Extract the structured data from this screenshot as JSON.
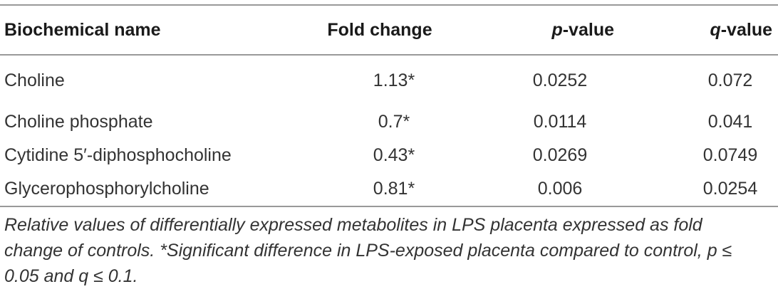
{
  "table": {
    "headers": {
      "name": "Biochemical name",
      "fold": "Fold change",
      "p_letter": "p",
      "p_suffix": "-value",
      "q_letter": "q",
      "q_suffix": "-value"
    },
    "rows": [
      {
        "name": "Choline",
        "fold": "1.13*",
        "p": "0.0252",
        "q": "0.072"
      },
      {
        "name": "Choline phosphate",
        "fold": "0.7*",
        "p": "0.0114",
        "q": "0.041"
      },
      {
        "name": "Cytidine 5′-diphosphocholine",
        "fold": "0.43*",
        "p": "0.0269",
        "q": "0.0749"
      },
      {
        "name": "Glycerophosphorylcholine",
        "fold": "0.81*",
        "p": "0.006",
        "q": "0.0254"
      }
    ]
  },
  "footnote": "Relative values of differentially expressed metabolites in LPS placenta expressed as fold change of controls. *Significant difference in LPS-exposed placenta compared to control, p ≤ 0.05 and q ≤ 0.1."
}
